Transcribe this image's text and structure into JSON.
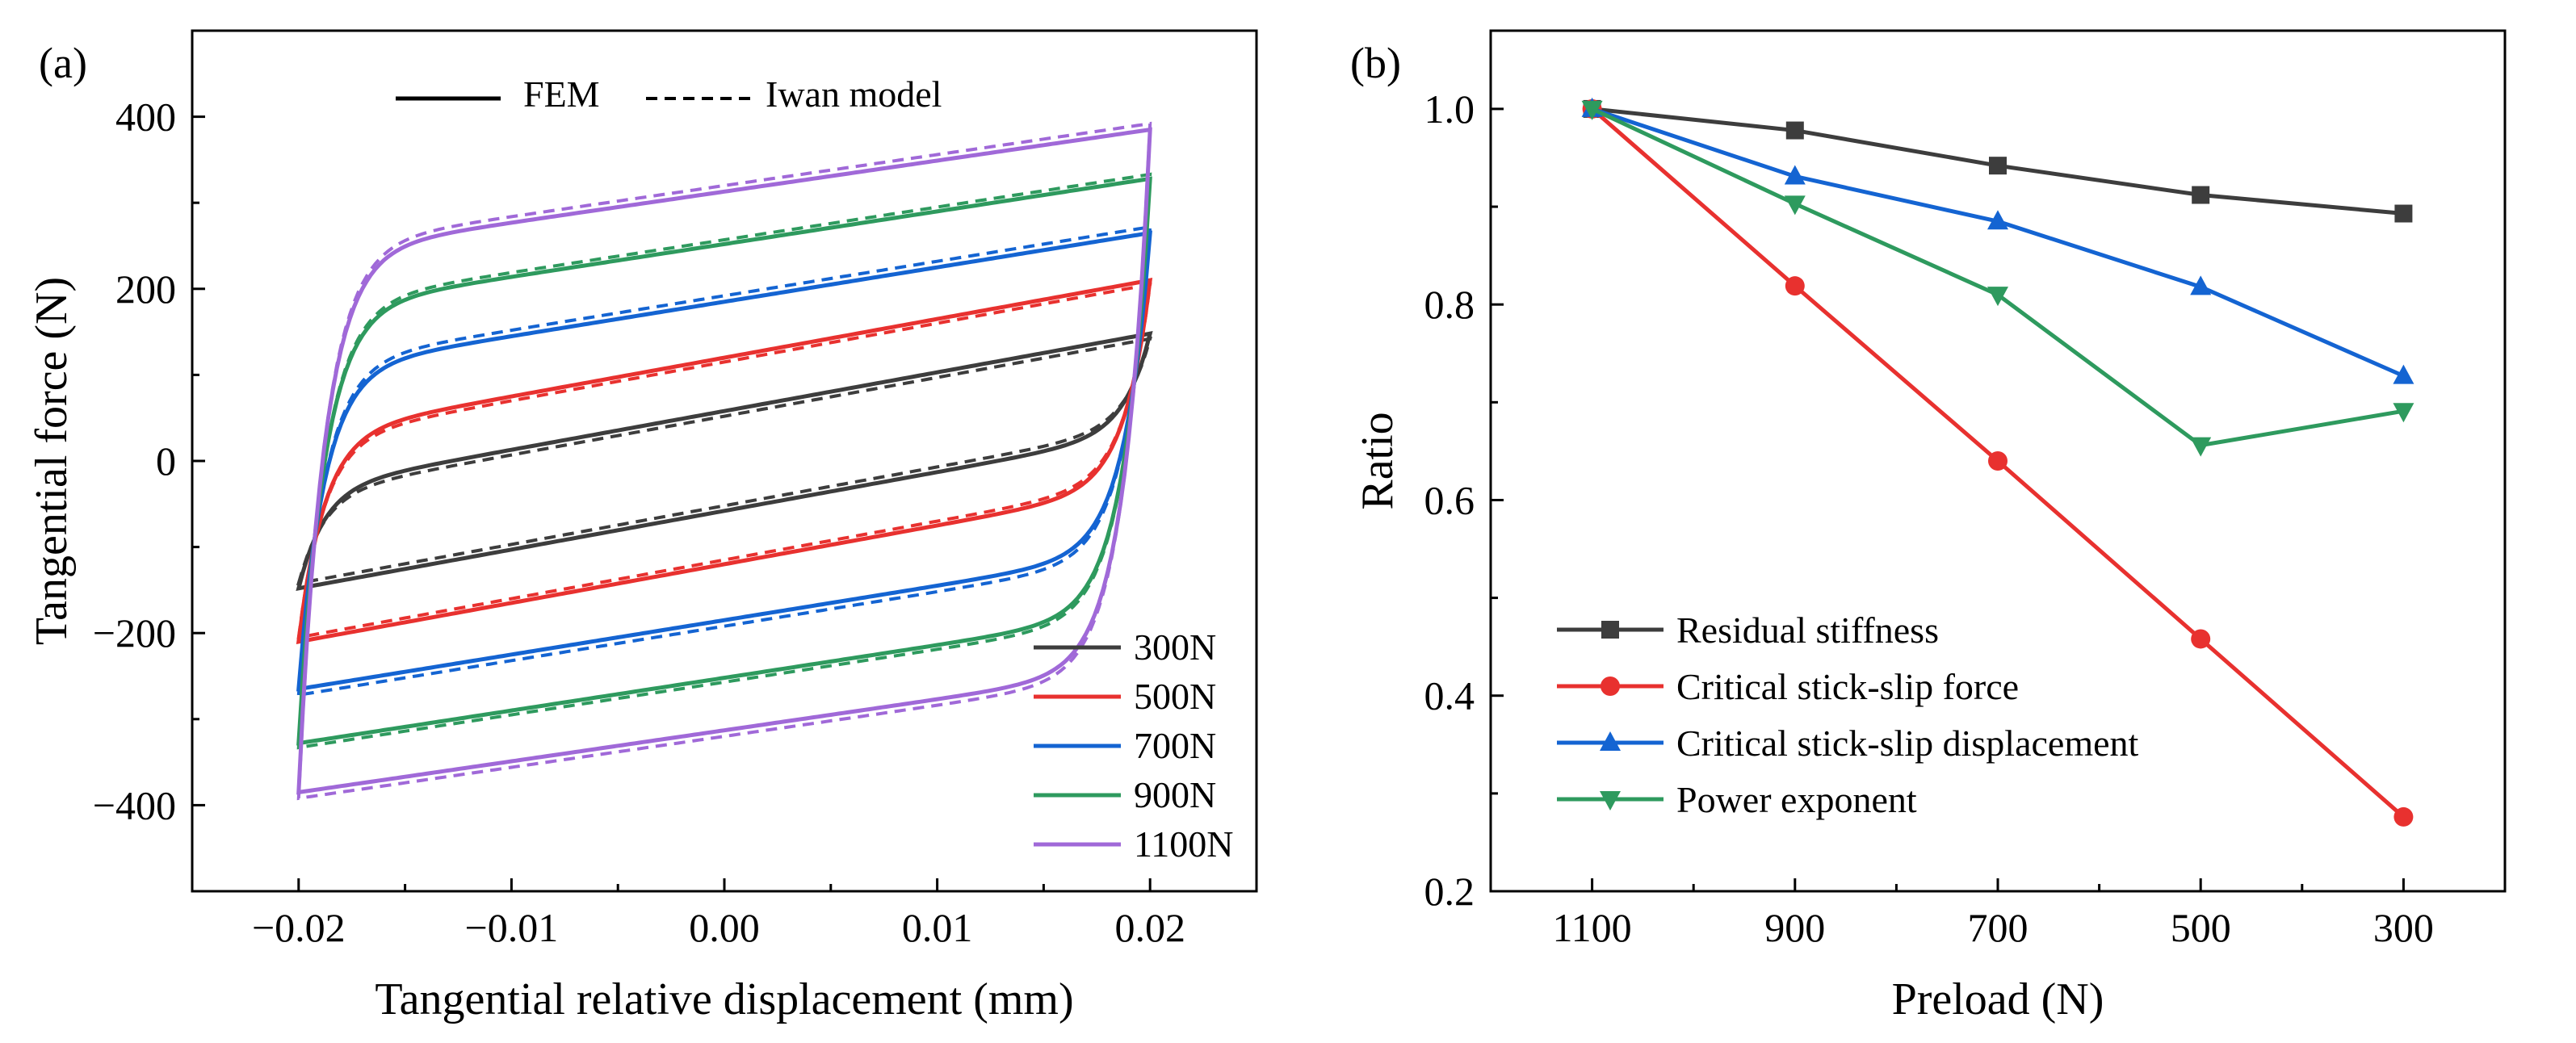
{
  "chart_data": [
    {
      "panel_label": "(a)",
      "type": "line",
      "xlabel": "Tangential relative displacement (mm)",
      "ylabel": "Tangential force (N)",
      "xlim": [
        -0.025,
        0.025
      ],
      "ylim": [
        -500,
        500
      ],
      "x_ticks": [
        -0.02,
        -0.01,
        0.0,
        0.01,
        0.02
      ],
      "x_tick_labels": [
        "−0.02",
        "−0.01",
        "0.00",
        "0.01",
        "0.02"
      ],
      "y_ticks": [
        -400,
        -200,
        0,
        200,
        400
      ],
      "y_tick_labels": [
        "−400",
        "−200",
        "0",
        "200",
        "400"
      ],
      "style_legend": [
        {
          "label": "FEM",
          "dash": "solid"
        },
        {
          "label": "Iwan model",
          "dash": "dashed"
        }
      ],
      "series": [
        {
          "name": "300N",
          "color": "#3d3d3d",
          "fem": {
            "fmax": 148,
            "residual_slope": 4500,
            "x_slip": 0.0148
          },
          "iwan": {
            "fmax": 142,
            "residual_slope": 4500,
            "x_slip": 0.0148
          }
        },
        {
          "name": "500N",
          "color": "#e8312f",
          "fem": {
            "fmax": 210,
            "residual_slope": 4500,
            "x_slip": 0.0132
          },
          "iwan": {
            "fmax": 205,
            "residual_slope": 4500,
            "x_slip": 0.0128
          }
        },
        {
          "name": "700N",
          "color": "#1464d2",
          "fem": {
            "fmax": 265,
            "residual_slope": 4000,
            "x_slip": 0.0125
          },
          "iwan": {
            "fmax": 272,
            "residual_slope": 4000,
            "x_slip": 0.0122
          }
        },
        {
          "name": "900N",
          "color": "#2e9a5e",
          "fem": {
            "fmax": 328,
            "residual_slope": 3800,
            "x_slip": 0.0122
          },
          "iwan": {
            "fmax": 333,
            "residual_slope": 3800,
            "x_slip": 0.0118
          }
        },
        {
          "name": "1100N",
          "color": "#a069d8",
          "fem": {
            "fmax": 385,
            "residual_slope": 3600,
            "x_slip": 0.0122
          },
          "iwan": {
            "fmax": 392,
            "residual_slope": 3600,
            "x_slip": 0.0118
          }
        }
      ]
    },
    {
      "panel_label": "(b)",
      "type": "line",
      "xlabel": "Preload (N)",
      "ylabel": "Ratio",
      "categories": [
        "1100",
        "900",
        "700",
        "500",
        "300"
      ],
      "xlim": [
        1200,
        200
      ],
      "ylim": [
        0.2,
        1.08
      ],
      "y_ticks": [
        0.2,
        0.4,
        0.6,
        0.8,
        1.0
      ],
      "y_tick_labels": [
        "0.2",
        "0.4",
        "0.6",
        "0.8",
        "1.0"
      ],
      "series": [
        {
          "name": "Residual stiffness",
          "color": "#3d3d3d",
          "marker": "square",
          "values": [
            1.0,
            0.978,
            0.942,
            0.912,
            0.893
          ]
        },
        {
          "name": "Critical stick-slip force",
          "color": "#e8312f",
          "marker": "circle",
          "values": [
            1.0,
            0.819,
            0.64,
            0.458,
            0.276
          ]
        },
        {
          "name": "Critical stick-slip displacement",
          "color": "#1464d2",
          "marker": "triangle-up",
          "values": [
            1.0,
            0.931,
            0.885,
            0.818,
            0.727
          ]
        },
        {
          "name": "Power exponent",
          "color": "#2e9a5e",
          "marker": "triangle-down",
          "values": [
            1.0,
            0.903,
            0.81,
            0.656,
            0.691
          ]
        }
      ]
    }
  ]
}
